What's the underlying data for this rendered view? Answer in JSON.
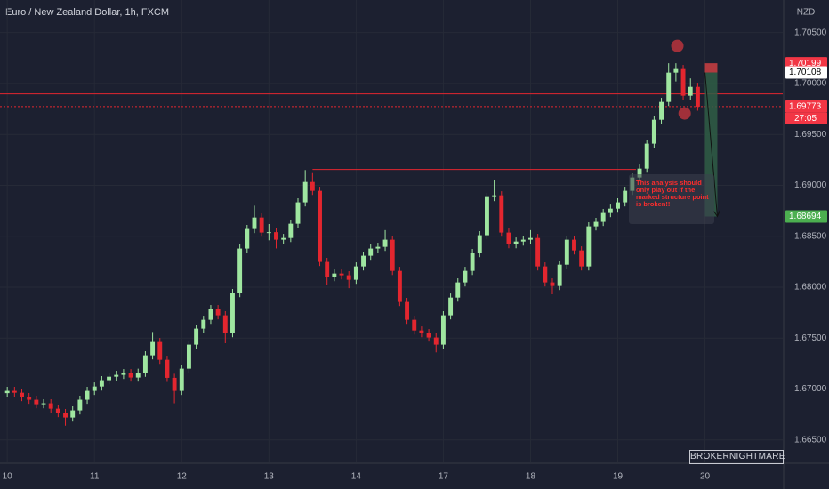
{
  "chart_data": {
    "type": "candlestick",
    "title": "Euro / New Zealand Dollar, 1h, FXCM",
    "currency": "NZD",
    "xlim": [
      -1,
      106.7
    ],
    "ylim": [
      1.6628,
      1.7082
    ],
    "xticks": [
      {
        "value": 0,
        "label": "10"
      },
      {
        "value": 12,
        "label": "11"
      },
      {
        "value": 24,
        "label": "12"
      },
      {
        "value": 36,
        "label": "13"
      },
      {
        "value": 48,
        "label": "14"
      },
      {
        "value": 60,
        "label": "17"
      },
      {
        "value": 72,
        "label": "18"
      },
      {
        "value": 84,
        "label": "19"
      },
      {
        "value": 96,
        "label": "20"
      }
    ],
    "yticks": [
      {
        "value": 1.705,
        "label": "1.70500"
      },
      {
        "value": 1.7,
        "label": "1.70000"
      },
      {
        "value": 1.695,
        "label": "1.69500"
      },
      {
        "value": 1.69,
        "label": "1.69000"
      },
      {
        "value": 1.685,
        "label": "1.68500"
      },
      {
        "value": 1.68,
        "label": "1.68000"
      },
      {
        "value": 1.675,
        "label": "1.67500"
      },
      {
        "value": 1.67,
        "label": "1.67000"
      },
      {
        "value": 1.665,
        "label": "1.66500"
      }
    ],
    "grid": true,
    "up_color": "#9fe6a0",
    "down_color": "#e3262f",
    "open": [
      1.6696,
      1.66982,
      1.66964,
      1.66921,
      1.66895,
      1.66851,
      1.6686,
      1.66807,
      1.66764,
      1.6672,
      1.6679,
      1.66895,
      1.66982,
      1.67025,
      1.67087,
      1.67121,
      1.67139,
      1.67156,
      1.67113,
      1.6716,
      1.67331,
      1.67462,
      1.67287,
      1.6711,
      1.66982,
      1.672,
      1.67436,
      1.67593,
      1.6768,
      1.67785,
      1.67724,
      1.67549,
      1.67942,
      1.68379,
      1.68571,
      1.68684,
      1.68536,
      1.6854,
      1.68466,
      1.68483,
      1.68623,
      1.68833,
      1.69033,
      1.68946,
      1.68248,
      1.68099,
      1.68134,
      1.68117,
      1.68073,
      1.68204,
      1.68309,
      1.68379,
      1.68396,
      1.68466,
      1.6816,
      1.67855,
      1.6768,
      1.67575,
      1.67549,
      1.67506,
      1.67436,
      1.67724,
      1.67898,
      1.68047,
      1.6816,
      1.68335,
      1.6851,
      1.68885,
      1.68902,
      1.68536,
      1.68422,
      1.68448,
      1.68466,
      1.68483,
      1.68204,
      1.68047,
      1.68012,
      1.68221,
      1.68466,
      1.68361,
      1.68204,
      1.68597,
      1.68641,
      1.68728,
      1.68771,
      1.68833,
      1.68946,
      1.69077,
      1.69164,
      1.69409,
      1.69644,
      1.69819,
      1.70107,
      1.70142,
      1.6988,
      1.69967
    ],
    "high": [
      1.67022,
      1.67022,
      1.67004,
      1.66961,
      1.66935,
      1.669,
      1.669,
      1.66847,
      1.66804,
      1.6683,
      1.66935,
      1.67022,
      1.67065,
      1.67127,
      1.67161,
      1.67179,
      1.67196,
      1.67196,
      1.672,
      1.67371,
      1.6756,
      1.67502,
      1.67327,
      1.6715,
      1.6724,
      1.67476,
      1.67633,
      1.6772,
      1.67825,
      1.67825,
      1.67764,
      1.67982,
      1.68419,
      1.68611,
      1.688,
      1.68724,
      1.6862,
      1.6858,
      1.68523,
      1.68663,
      1.68873,
      1.6915,
      1.6912,
      1.68986,
      1.68288,
      1.68174,
      1.68174,
      1.68157,
      1.68244,
      1.68349,
      1.68419,
      1.68436,
      1.6856,
      1.68506,
      1.682,
      1.67895,
      1.6772,
      1.67615,
      1.67589,
      1.67546,
      1.67764,
      1.67938,
      1.68087,
      1.682,
      1.68375,
      1.6855,
      1.68925,
      1.6905,
      1.68942,
      1.68576,
      1.68488,
      1.68506,
      1.6856,
      1.68523,
      1.68244,
      1.68087,
      1.68261,
      1.68506,
      1.68506,
      1.68401,
      1.68637,
      1.68681,
      1.68768,
      1.68811,
      1.68873,
      1.68986,
      1.69117,
      1.69204,
      1.69449,
      1.69684,
      1.69859,
      1.70199,
      1.70199,
      1.70182,
      1.7005,
      1.70007
    ],
    "low": [
      1.6692,
      1.66924,
      1.66881,
      1.66855,
      1.66811,
      1.66811,
      1.66767,
      1.66724,
      1.6664,
      1.6668,
      1.6675,
      1.66855,
      1.66942,
      1.66985,
      1.67047,
      1.67081,
      1.67099,
      1.67073,
      1.67073,
      1.6712,
      1.67291,
      1.67247,
      1.6707,
      1.6686,
      1.66942,
      1.6716,
      1.67396,
      1.67553,
      1.6764,
      1.67684,
      1.6745,
      1.67509,
      1.67902,
      1.68339,
      1.68531,
      1.68496,
      1.6846,
      1.6838,
      1.68426,
      1.68443,
      1.68583,
      1.68793,
      1.68906,
      1.68208,
      1.6802,
      1.68059,
      1.68077,
      1.6799,
      1.68033,
      1.68164,
      1.68269,
      1.68339,
      1.68356,
      1.6812,
      1.67815,
      1.6764,
      1.67535,
      1.67509,
      1.67466,
      1.6736,
      1.67396,
      1.67684,
      1.67858,
      1.68007,
      1.6812,
      1.68295,
      1.6847,
      1.68845,
      1.68496,
      1.68382,
      1.68382,
      1.68408,
      1.68426,
      1.68164,
      1.68007,
      1.6793,
      1.67972,
      1.68181,
      1.68321,
      1.68164,
      1.68164,
      1.68557,
      1.68601,
      1.68688,
      1.68731,
      1.68793,
      1.68906,
      1.69037,
      1.69124,
      1.69369,
      1.69604,
      1.69779,
      1.7002,
      1.6984,
      1.6984,
      1.69733
    ],
    "close": [
      1.66982,
      1.66964,
      1.66921,
      1.66895,
      1.66851,
      1.6686,
      1.66807,
      1.66764,
      1.6672,
      1.6679,
      1.66895,
      1.66982,
      1.67025,
      1.67087,
      1.67121,
      1.67139,
      1.67156,
      1.67113,
      1.6716,
      1.67331,
      1.67462,
      1.67287,
      1.6711,
      1.66982,
      1.672,
      1.67436,
      1.67593,
      1.6768,
      1.67785,
      1.67724,
      1.67549,
      1.67942,
      1.68379,
      1.68571,
      1.68684,
      1.68536,
      1.6854,
      1.68466,
      1.68483,
      1.68623,
      1.68833,
      1.69033,
      1.68946,
      1.68248,
      1.68099,
      1.68134,
      1.68117,
      1.68073,
      1.68204,
      1.68309,
      1.68379,
      1.68396,
      1.68466,
      1.6816,
      1.67855,
      1.6768,
      1.67575,
      1.67549,
      1.67506,
      1.67436,
      1.67724,
      1.67898,
      1.68047,
      1.6816,
      1.68335,
      1.6851,
      1.68885,
      1.68902,
      1.68536,
      1.68422,
      1.68448,
      1.68466,
      1.68483,
      1.68204,
      1.68047,
      1.68012,
      1.68221,
      1.68466,
      1.68361,
      1.68204,
      1.68597,
      1.68641,
      1.68728,
      1.68771,
      1.68833,
      1.68946,
      1.69077,
      1.69164,
      1.69409,
      1.69644,
      1.69819,
      1.70107,
      1.70142,
      1.6988,
      1.69967,
      1.69773
    ],
    "hlines": [
      {
        "value": 1.69898,
        "color": "#e3262f",
        "style": "solid"
      },
      {
        "value": 1.69773,
        "color": "#e3262f",
        "style": "dotted"
      }
    ],
    "structure_line": {
      "value": 1.69156,
      "start": 42,
      "end": 86.5,
      "color": "#e3262f"
    },
    "position": {
      "entry": 1.70108,
      "stop": 1.70199,
      "target": 1.68694,
      "start": 96,
      "end": 97.7,
      "stop_color": "#b23a3f",
      "target_color": "#2f5e45"
    },
    "markers": [
      {
        "x": 92.2,
        "y": 1.70369
      },
      {
        "x": 93.2,
        "y": 1.69706
      }
    ],
    "marker_color": "#b8343c",
    "price_labels": [
      {
        "value": 1.70199,
        "color": "#f23645",
        "text_color": "#ffffff"
      },
      {
        "value": 1.70108,
        "color": "#ffffff",
        "text_color": "#000000"
      },
      {
        "value": 1.69773,
        "color": "#f23645",
        "text_color": "#ffffff",
        "countdown": "27:05"
      },
      {
        "value": 1.68694,
        "color": "#4caf50",
        "text_color": "#ffffff"
      }
    ],
    "annotation": "This analysis should only play out if the marked structure point is broken!!",
    "watermark": "BROKERNIGHTMARE"
  }
}
